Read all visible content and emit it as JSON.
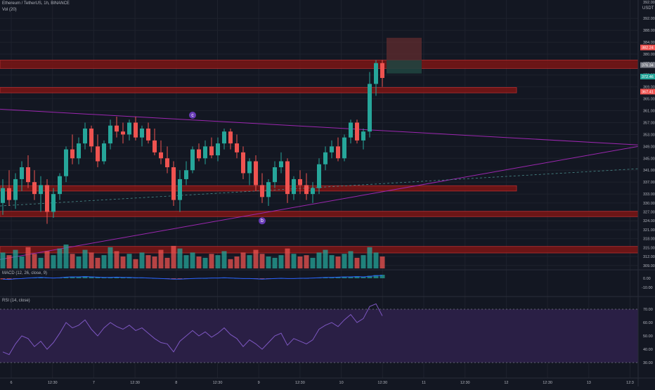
{
  "header": {
    "symbol": "Ethereum / TetherUS, 1h, BINANCE",
    "vol_label": "Vol (20)",
    "macd_label": "MACD (12, 26, close, 9)",
    "rsi_label": "RSI (14, close)",
    "currency": "USDT"
  },
  "colors": {
    "background": "#131722",
    "up": "#26a69a",
    "down": "#ef5350",
    "zone_fill": "#7b1515",
    "zone_border": "#d13232",
    "trendline": "#9c27b0",
    "rsi_band": "#2a1f45",
    "rsi_line": "#7e57c2"
  },
  "chart_data": [
    {
      "type": "candlestick",
      "title": "Ethereum / TetherUS, 1h, BINANCE",
      "x_ticks": [
        "6",
        "12:30",
        "7",
        "12:30",
        "8",
        "12:30",
        "9",
        "12:30",
        "10",
        "12:30",
        "11",
        "12:30",
        "12",
        "12:30",
        "13",
        "12:3"
      ],
      "y_ticks": [
        392.0,
        388.0,
        384.0,
        380.0,
        377.0,
        373.0,
        369.0,
        365.0,
        361.0,
        357.0,
        353.0,
        349.0,
        345.0,
        341.0,
        337.0,
        333.0,
        330.0,
        327.0,
        324.0,
        321.0,
        318.0,
        315.0,
        312.0,
        309.0
      ],
      "y_top_label": "392.00",
      "price_badges": [
        {
          "label": "376.34",
          "value": 376.34,
          "color": "#787b86"
        },
        {
          "label": "372.46",
          "value": 372.46,
          "color": "#26a69a"
        },
        {
          "label": "367.41",
          "value": 367.41,
          "color": "#ef5350"
        },
        {
          "label": "382.24",
          "value": 382.24,
          "color": "#ef5350"
        }
      ],
      "annotations": [
        "c",
        "b"
      ],
      "ylim": [
        308,
        393
      ],
      "zones": [
        {
          "from": 375.2,
          "to": 378.0,
          "until": "right-edge"
        },
        {
          "from": 367.0,
          "to": 368.8,
          "until": 59
        },
        {
          "from": 334.0,
          "to": 335.8,
          "until": 59
        },
        {
          "from": 325.4,
          "to": 327.2,
          "until": "right-edge"
        },
        {
          "from": 313.2,
          "to": 315.4,
          "until": "right-edge"
        }
      ],
      "candles": [
        [
          330,
          338,
          326,
          335
        ],
        [
          335,
          341,
          329,
          331
        ],
        [
          331,
          340,
          328,
          338
        ],
        [
          338,
          344,
          334,
          342
        ],
        [
          342,
          346,
          335,
          337
        ],
        [
          337,
          341,
          331,
          333
        ],
        [
          333,
          339,
          327,
          336
        ],
        [
          336,
          338,
          323,
          327
        ],
        [
          327,
          335,
          325,
          333
        ],
        [
          333,
          340,
          331,
          339
        ],
        [
          339,
          349,
          337,
          348
        ],
        [
          348,
          353,
          343,
          345
        ],
        [
          345,
          352,
          343,
          350
        ],
        [
          350,
          357,
          348,
          355
        ],
        [
          355,
          356,
          347,
          349
        ],
        [
          349,
          353,
          342,
          344
        ],
        [
          344,
          351,
          343,
          350
        ],
        [
          350,
          358,
          348,
          356
        ],
        [
          356,
          359,
          352,
          354
        ],
        [
          354,
          357,
          350,
          353
        ],
        [
          353,
          358,
          351,
          357
        ],
        [
          357,
          359,
          351,
          352
        ],
        [
          352,
          356,
          349,
          355
        ],
        [
          355,
          357,
          350,
          351
        ],
        [
          351,
          355,
          346,
          347
        ],
        [
          347,
          351,
          343,
          345
        ],
        [
          345,
          349,
          340,
          342
        ],
        [
          342,
          344,
          329,
          331
        ],
        [
          331,
          341,
          327,
          338
        ],
        [
          338,
          344,
          336,
          341
        ],
        [
          341,
          349,
          340,
          348
        ],
        [
          348,
          350,
          344,
          345
        ],
        [
          345,
          351,
          343,
          349
        ],
        [
          349,
          352,
          345,
          346
        ],
        [
          346,
          352,
          344,
          350
        ],
        [
          350,
          355,
          348,
          354
        ],
        [
          354,
          355,
          348,
          350
        ],
        [
          350,
          353,
          345,
          347
        ],
        [
          347,
          349,
          338,
          340
        ],
        [
          340,
          345,
          336,
          344
        ],
        [
          344,
          346,
          334,
          336
        ],
        [
          336,
          340,
          330,
          332
        ],
        [
          332,
          338,
          329,
          337
        ],
        [
          337,
          344,
          335,
          342
        ],
        [
          342,
          347,
          340,
          344
        ],
        [
          344,
          345,
          330,
          333
        ],
        [
          333,
          339,
          331,
          338
        ],
        [
          338,
          341,
          333,
          336
        ],
        [
          336,
          340,
          331,
          333
        ],
        [
          333,
          337,
          330,
          335
        ],
        [
          335,
          345,
          333,
          343
        ],
        [
          343,
          349,
          341,
          347
        ],
        [
          347,
          351,
          345,
          349
        ],
        [
          349,
          352,
          344,
          345
        ],
        [
          345,
          353,
          344,
          352
        ],
        [
          352,
          358,
          350,
          357
        ],
        [
          357,
          358,
          350,
          351
        ],
        [
          351,
          355,
          348,
          354
        ],
        [
          354,
          374,
          352,
          370
        ],
        [
          370,
          378,
          366,
          377
        ],
        [
          377,
          378,
          369,
          372
        ]
      ],
      "volume": [
        12,
        10,
        14,
        9,
        16,
        11,
        8,
        13,
        10,
        15,
        18,
        11,
        9,
        14,
        12,
        8,
        10,
        16,
        13,
        9,
        11,
        7,
        12,
        10,
        9,
        14,
        8,
        17,
        15,
        10,
        12,
        9,
        8,
        11,
        10,
        13,
        7,
        9,
        12,
        10,
        14,
        11,
        9,
        8,
        10,
        15,
        11,
        9,
        10,
        8,
        12,
        14,
        10,
        9,
        11,
        13,
        8,
        10,
        16,
        12,
        9
      ],
      "macd": [
        -0.3,
        -0.4,
        -0.2,
        -0.1,
        0.1,
        0.2,
        0.3,
        0.2,
        0.1,
        0.2,
        0.4,
        0.5,
        0.5,
        0.6,
        0.5,
        0.4,
        0.3,
        0.3,
        0.4,
        0.3,
        0.3,
        0.2,
        0.2,
        0.1,
        0.0,
        -0.1,
        -0.2,
        -0.3,
        -0.3,
        -0.2,
        -0.1,
        0.0,
        0.0,
        0.1,
        0.1,
        0.2,
        0.1,
        0.0,
        -0.1,
        -0.1,
        -0.2,
        -0.3,
        -0.2,
        -0.1,
        0.0,
        -0.1,
        -0.1,
        0.0,
        0.0,
        0.1,
        0.2,
        0.3,
        0.3,
        0.4,
        0.5,
        0.5,
        0.6,
        0.5,
        0.7,
        0.9,
        1.0
      ],
      "macd_ticks": [
        "0.00",
        "-10.00"
      ],
      "rsi": [
        38,
        36,
        44,
        50,
        48,
        42,
        46,
        40,
        45,
        52,
        60,
        56,
        58,
        62,
        55,
        50,
        56,
        60,
        57,
        55,
        58,
        54,
        56,
        52,
        48,
        45,
        44,
        38,
        46,
        50,
        54,
        50,
        53,
        49,
        52,
        56,
        51,
        48,
        42,
        47,
        44,
        40,
        45,
        50,
        52,
        43,
        48,
        46,
        44,
        47,
        55,
        58,
        60,
        57,
        62,
        66,
        60,
        63,
        72,
        74,
        65
      ],
      "rsi_ticks": [
        "70.00",
        "60.00",
        "50.00",
        "40.00",
        "30.00"
      ]
    }
  ]
}
